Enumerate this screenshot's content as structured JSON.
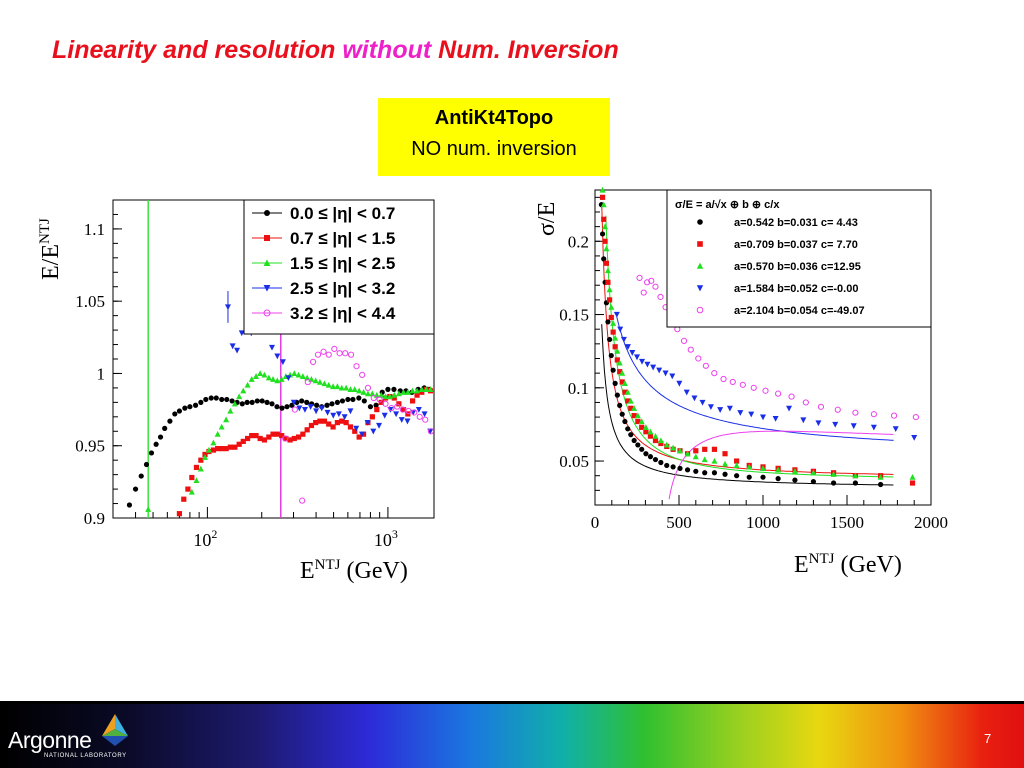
{
  "slide": {
    "title_part1": "Linearity and resolution ",
    "title_part2": "without",
    "title_part3": " Num. Inversion",
    "box_line1": "AntiKt4Topo",
    "box_line2": "NO num. inversion",
    "footer_logo": "Argonne",
    "footer_logo_sub": "NATIONAL LABORATORY",
    "page_number": "7"
  },
  "chart_data": [
    {
      "type": "scatter",
      "xscale": "log",
      "xlim": [
        30,
        1800
      ],
      "ylim": [
        0.9,
        1.12
      ],
      "ylabel_main": "E/E",
      "ylabel_sup": "NTJ",
      "xlabel_main": "E",
      "xlabel_sup": "NTJ",
      "xlabel_unit": "(GeV)",
      "ytick_labels": [
        "0.9",
        "0.95",
        "1",
        "1.05",
        "1.1"
      ],
      "yticks": [
        0.9,
        0.95,
        1.0,
        1.05,
        1.1
      ],
      "xtick_labels": [
        {
          "base": "10",
          "exp": "2"
        },
        {
          "base": "10",
          "exp": "3"
        }
      ],
      "xticks": [
        100,
        1000
      ],
      "vlines": [
        {
          "x": 47,
          "color": "#30e030"
        },
        {
          "x": 255,
          "color": "#e030e0"
        }
      ],
      "legend_position": "top-right",
      "series": [
        {
          "name": "0.0 ≤ |η| < 0.7",
          "color": "#000000",
          "marker": "circle-filled",
          "x": [
            37,
            40,
            43,
            46,
            49,
            52,
            55,
            58,
            62,
            66,
            70,
            75,
            80,
            86,
            92,
            98,
            105,
            112,
            120,
            128,
            137,
            146,
            156,
            166,
            177,
            189,
            201,
            214,
            228,
            243,
            259,
            276,
            294,
            313,
            333,
            355,
            378,
            403,
            430,
            460,
            490,
            525,
            560,
            600,
            640,
            690,
            740,
            800,
            860,
            930,
            1000,
            1080,
            1170,
            1260,
            1360,
            1470,
            1590,
            1700
          ],
          "y": [
            0.909,
            0.92,
            0.929,
            0.937,
            0.945,
            0.951,
            0.956,
            0.962,
            0.967,
            0.972,
            0.974,
            0.976,
            0.977,
            0.978,
            0.98,
            0.982,
            0.983,
            0.983,
            0.982,
            0.982,
            0.981,
            0.98,
            0.979,
            0.98,
            0.98,
            0.981,
            0.981,
            0.98,
            0.979,
            0.977,
            0.976,
            0.977,
            0.978,
            0.98,
            0.981,
            0.98,
            0.979,
            0.978,
            0.977,
            0.978,
            0.979,
            0.98,
            0.981,
            0.982,
            0.982,
            0.983,
            0.981,
            0.977,
            0.978,
            0.987,
            0.989,
            0.989,
            0.988,
            0.988,
            0.987,
            0.989,
            0.99,
            0.989
          ]
        },
        {
          "name": "0.7 ≤ |η| < 1.5",
          "color": "#ee1010",
          "marker": "square-filled",
          "x": [
            70,
            74,
            78,
            82,
            87,
            92,
            97,
            102,
            108,
            114,
            120,
            127,
            134,
            142,
            150,
            158,
            167,
            176,
            186,
            196,
            207,
            219,
            231,
            244,
            258,
            272,
            287,
            303,
            320,
            338,
            357,
            377,
            398,
            420,
            445,
            470,
            497,
            525,
            555,
            587,
            620,
            655,
            693,
            733,
            775,
            820,
            868,
            918,
            970,
            1025,
            1085,
            1150,
            1220,
            1290,
            1370,
            1450,
            1540,
            1630,
            1720
          ],
          "y": [
            0.903,
            0.913,
            0.92,
            0.928,
            0.935,
            0.94,
            0.944,
            0.946,
            0.947,
            0.948,
            0.948,
            0.948,
            0.949,
            0.949,
            0.951,
            0.953,
            0.955,
            0.957,
            0.957,
            0.955,
            0.954,
            0.956,
            0.958,
            0.958,
            0.957,
            0.955,
            0.954,
            0.955,
            0.956,
            0.958,
            0.961,
            0.964,
            0.966,
            0.967,
            0.967,
            0.965,
            0.963,
            0.966,
            0.967,
            0.966,
            0.963,
            0.96,
            0.956,
            0.958,
            0.966,
            0.97,
            0.975,
            0.98,
            0.983,
            0.984,
            0.983,
            0.979,
            0.975,
            0.972,
            0.981,
            0.985,
            0.987,
            0.989,
            0.988
          ]
        },
        {
          "name": "1.5 ≤ |η| < 2.5",
          "color": "#20e020",
          "marker": "triangle-up-filled",
          "x": [
            47,
            82,
            87,
            92,
            97,
            102,
            108,
            114,
            120,
            127,
            134,
            142,
            150,
            158,
            167,
            176,
            186,
            196,
            207,
            219,
            231,
            244,
            258,
            272,
            287,
            303,
            320,
            338,
            357,
            377,
            398,
            420,
            445,
            470,
            497,
            525,
            555,
            587,
            620,
            655,
            693,
            733,
            775,
            820,
            868,
            918,
            970,
            1025,
            1085,
            1150,
            1220,
            1290,
            1370,
            1450,
            1540,
            1630,
            1720
          ],
          "y": [
            0.906,
            0.918,
            0.926,
            0.934,
            0.942,
            0.947,
            0.952,
            0.958,
            0.963,
            0.968,
            0.974,
            0.979,
            0.984,
            0.988,
            0.992,
            0.996,
            0.998,
            1.0,
            0.999,
            0.997,
            0.996,
            0.995,
            0.996,
            0.998,
            0.999,
            1.0,
            0.999,
            0.998,
            0.997,
            0.996,
            0.995,
            0.994,
            0.993,
            0.992,
            0.991,
            0.991,
            0.99,
            0.99,
            0.989,
            0.989,
            0.988,
            0.987,
            0.986,
            0.986,
            0.985,
            0.985,
            0.984,
            0.984,
            0.985,
            0.986,
            0.987,
            0.987,
            0.988,
            0.988,
            0.989,
            0.989,
            0.989
          ]
        },
        {
          "name": "2.5 ≤ |η| < 3.2",
          "color": "#1a2ee8",
          "marker": "triangle-down-filled",
          "x": [
            130,
            138,
            146,
            155,
            165,
            176,
            187,
            200,
            213,
            228,
            244,
            262,
            281,
            301,
            323,
            347,
            373,
            400,
            430,
            463,
            498,
            535,
            576,
            620,
            667,
            718,
            772,
            830,
            893,
            960,
            1032,
            1110,
            1193,
            1283,
            1380,
            1484,
            1596,
            1716
          ],
          "y": [
            1.046,
            1.019,
            1.016,
            1.028,
            1.036,
            1.038,
            1.04,
            1.035,
            1.032,
            1.018,
            1.012,
            1.008,
            0.997,
            0.98,
            0.976,
            0.975,
            0.977,
            0.974,
            0.976,
            0.973,
            0.971,
            0.972,
            0.97,
            0.974,
            0.962,
            0.958,
            0.966,
            0.96,
            0.964,
            0.971,
            0.975,
            0.972,
            0.968,
            0.967,
            0.973,
            0.975,
            0.972,
            0.96
          ]
        },
        {
          "name": "3.2 ≤ |η| < 4.4",
          "color": "#ee40ee",
          "marker": "circle-open",
          "x": [
            270,
            305,
            335,
            360,
            385,
            410,
            440,
            470,
            505,
            540,
            580,
            625,
            670,
            720,
            775,
            835,
            900,
            970,
            1045,
            1125,
            1210,
            1300,
            1400,
            1500,
            1610,
            1730
          ],
          "y": [
            0.955,
            0.975,
            0.912,
            0.994,
            1.008,
            1.013,
            1.015,
            1.013,
            1.017,
            1.014,
            1.014,
            1.013,
            1.005,
            0.999,
            0.99,
            0.983,
            0.982,
            0.979,
            0.976,
            0.977,
            0.975,
            0.974,
            0.973,
            0.97,
            0.968,
            0.96
          ]
        }
      ]
    },
    {
      "type": "scatter",
      "xlim": [
        0,
        2000
      ],
      "ylim": [
        0.02,
        0.235
      ],
      "ylabel": "σ/E",
      "xlabel_main": "E",
      "xlabel_sup": "NTJ",
      "xlabel_unit": "(GeV)",
      "xticks": [
        0,
        500,
        1000,
        1500,
        2000
      ],
      "xtick_labels": [
        "0",
        "500",
        "1000",
        "1500",
        "2000"
      ],
      "yticks": [
        0.05,
        0.1,
        0.15,
        0.2
      ],
      "ytick_labels": [
        "0.05",
        "0.1",
        "0.15",
        "0.2"
      ],
      "legend_position": "top-right",
      "legend_title": "σ/E = a/√x ⊕ b ⊕ c/x",
      "series": [
        {
          "name": "a=0.542 b=0.031 c= 4.43",
          "color": "#000000",
          "marker": "circle-filled",
          "fit": {
            "a": 0.542,
            "b": 0.031,
            "c": 4.43
          },
          "x": [
            38,
            45,
            52,
            60,
            68,
            77,
            87,
            97,
            108,
            120,
            133,
            147,
            162,
            178,
            195,
            213,
            233,
            255,
            278,
            303,
            330,
            360,
            392,
            427,
            465,
            506,
            551,
            600,
            653,
            711,
            774,
            843,
            918,
            1000,
            1090,
            1190,
            1300,
            1420,
            1550,
            1700
          ],
          "y": [
            0.225,
            0.205,
            0.188,
            0.172,
            0.158,
            0.145,
            0.133,
            0.122,
            0.112,
            0.103,
            0.095,
            0.088,
            0.082,
            0.077,
            0.072,
            0.068,
            0.064,
            0.061,
            0.058,
            0.055,
            0.053,
            0.051,
            0.049,
            0.047,
            0.046,
            0.045,
            0.044,
            0.043,
            0.042,
            0.042,
            0.041,
            0.04,
            0.039,
            0.039,
            0.038,
            0.037,
            0.036,
            0.035,
            0.035,
            0.034
          ]
        },
        {
          "name": "a=0.709 b=0.037 c= 7.70",
          "color": "#ee1010",
          "marker": "square-filled",
          "fit": {
            "a": 0.709,
            "b": 0.037,
            "c": 7.7
          },
          "x": [
            45,
            52,
            60,
            68,
            77,
            87,
            97,
            108,
            120,
            133,
            147,
            162,
            178,
            195,
            213,
            233,
            255,
            278,
            303,
            330,
            360,
            392,
            427,
            465,
            506,
            551,
            600,
            653,
            711,
            774,
            843,
            918,
            1000,
            1090,
            1190,
            1300,
            1420,
            1550,
            1700,
            1890
          ],
          "y": [
            0.23,
            0.215,
            0.2,
            0.185,
            0.172,
            0.16,
            0.148,
            0.138,
            0.128,
            0.119,
            0.111,
            0.104,
            0.097,
            0.091,
            0.086,
            0.081,
            0.077,
            0.073,
            0.07,
            0.067,
            0.064,
            0.062,
            0.06,
            0.058,
            0.057,
            0.055,
            0.057,
            0.058,
            0.058,
            0.055,
            0.05,
            0.047,
            0.046,
            0.045,
            0.044,
            0.043,
            0.042,
            0.04,
            0.04,
            0.035
          ]
        },
        {
          "name": "a=0.570 b=0.036 c=12.95",
          "color": "#20e020",
          "marker": "triangle-up-filled",
          "fit": {
            "a": 0.57,
            "b": 0.036,
            "c": 12.95
          },
          "x": [
            45,
            52,
            60,
            68,
            77,
            87,
            97,
            108,
            120,
            133,
            147,
            162,
            178,
            195,
            213,
            233,
            255,
            278,
            303,
            330,
            360,
            392,
            427,
            465,
            506,
            551,
            600,
            653,
            711,
            774,
            843,
            918,
            1000,
            1090,
            1190,
            1300,
            1420,
            1550,
            1700,
            1890
          ],
          "y": [
            0.235,
            0.225,
            0.21,
            0.195,
            0.18,
            0.167,
            0.155,
            0.144,
            0.134,
            0.125,
            0.117,
            0.11,
            0.103,
            0.097,
            0.091,
            0.086,
            0.081,
            0.077,
            0.073,
            0.07,
            0.067,
            0.064,
            0.061,
            0.059,
            0.057,
            0.055,
            0.053,
            0.051,
            0.05,
            0.048,
            0.047,
            0.046,
            0.045,
            0.044,
            0.043,
            0.042,
            0.041,
            0.04,
            0.039,
            0.039
          ]
        },
        {
          "name": "a=1.584 b=0.052 c=-0.00",
          "color": "#1a2ee8",
          "marker": "triangle-down-filled",
          "fit": {
            "a": 1.584,
            "b": 0.052,
            "c": 0.0
          },
          "x": [
            130,
            150,
            172,
            196,
            222,
            250,
            280,
            312,
            346,
            382,
            420,
            460,
            502,
            546,
            592,
            640,
            690,
            745,
            803,
            865,
            930,
            1000,
            1075,
            1155,
            1240,
            1330,
            1430,
            1540,
            1660,
            1790,
            1900
          ],
          "y": [
            0.15,
            0.14,
            0.133,
            0.128,
            0.124,
            0.121,
            0.118,
            0.116,
            0.114,
            0.112,
            0.11,
            0.108,
            0.103,
            0.097,
            0.093,
            0.09,
            0.087,
            0.085,
            0.086,
            0.083,
            0.082,
            0.08,
            0.079,
            0.086,
            0.078,
            0.076,
            0.075,
            0.074,
            0.073,
            0.072,
            0.066
          ]
        },
        {
          "name": "a=2.104 b=0.054 c=-49.07",
          "color": "#ee40ee",
          "marker": "circle-open",
          "fit": {
            "a": 2.104,
            "b": 0.054,
            "c": -49.07
          },
          "x": [
            265,
            290,
            310,
            335,
            360,
            390,
            420,
            455,
            490,
            530,
            570,
            615,
            660,
            710,
            765,
            820,
            880,
            945,
            1015,
            1090,
            1170,
            1255,
            1345,
            1445,
            1550,
            1660,
            1780,
            1910
          ],
          "y": [
            0.175,
            0.165,
            0.172,
            0.173,
            0.169,
            0.162,
            0.155,
            0.146,
            0.14,
            0.132,
            0.126,
            0.12,
            0.115,
            0.11,
            0.106,
            0.104,
            0.102,
            0.1,
            0.098,
            0.096,
            0.094,
            0.09,
            0.087,
            0.085,
            0.083,
            0.082,
            0.081,
            0.08
          ]
        }
      ]
    }
  ]
}
